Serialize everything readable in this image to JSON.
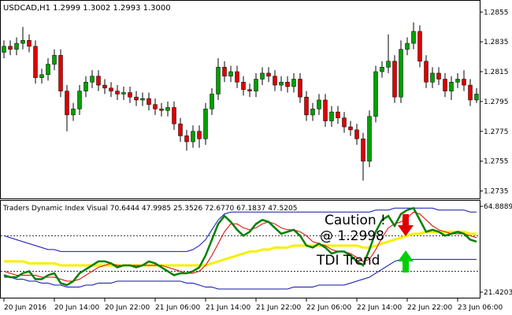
{
  "chart_data": [
    {
      "type": "candlestick",
      "title": "USDCAD,H1  1.2999 1.3002 1.2993 1.3000",
      "categories": [
        "20 Jun 2016",
        null,
        null,
        null,
        null,
        null,
        null,
        null,
        "20 Jun 14:00",
        null,
        null,
        null,
        null,
        null,
        null,
        null,
        "20 Jun 22:00",
        null,
        null,
        null,
        null,
        null,
        null,
        null,
        "21 Jun 06:00",
        null,
        null,
        null,
        null,
        null,
        null,
        null,
        "21 Jun 14:00",
        null,
        null,
        null,
        null,
        null,
        null,
        null,
        "21 Jun 22:00",
        null,
        null,
        null,
        null,
        null,
        null,
        null,
        "22 Jun 06:00",
        null,
        null,
        null,
        null,
        null,
        null,
        null,
        "22 Jun 14:00",
        null,
        null,
        null,
        null,
        null,
        null,
        null,
        "22 Jun 22:00",
        null,
        null,
        null,
        null,
        null,
        null,
        null,
        "23 Jun 06:00",
        null,
        null,
        null
      ],
      "open": [
        1.2828,
        1.2832,
        1.283,
        1.2834,
        1.2836,
        1.2832,
        1.2811,
        1.2813,
        1.282,
        1.2826,
        1.2802,
        1.2786,
        1.279,
        1.2802,
        1.2808,
        1.2812,
        1.2806,
        1.2804,
        1.2802,
        1.28,
        1.2801,
        1.2798,
        1.2796,
        1.2797,
        1.2793,
        1.279,
        1.2789,
        1.2791,
        1.278,
        1.2772,
        1.2768,
        1.2775,
        1.277,
        1.279,
        1.28,
        1.2818,
        1.2812,
        1.2815,
        1.2808,
        1.2803,
        1.2802,
        1.281,
        1.2814,
        1.2812,
        1.2806,
        1.2808,
        1.2805,
        1.281,
        1.2798,
        1.2786,
        1.279,
        1.2796,
        1.2782,
        1.2788,
        1.2784,
        1.2778,
        1.2776,
        1.277,
        1.2755,
        1.2785,
        1.2815,
        1.2818,
        1.2822,
        1.2798,
        1.283,
        1.2834,
        1.2842,
        1.2822,
        1.2808,
        1.2814,
        1.281,
        1.2802,
        1.2808,
        1.281,
        1.2806,
        1.2796
      ],
      "high": [
        1.2836,
        1.2836,
        1.2838,
        1.2845,
        1.284,
        1.2836,
        1.2817,
        1.2824,
        1.283,
        1.283,
        1.2806,
        1.2794,
        1.2806,
        1.2812,
        1.2816,
        1.2816,
        1.281,
        1.2808,
        1.2806,
        1.2805,
        1.2805,
        1.2802,
        1.2801,
        1.2801,
        1.2797,
        1.2794,
        1.2795,
        1.2795,
        1.2784,
        1.2776,
        1.2779,
        1.2779,
        1.2794,
        1.2804,
        1.2824,
        1.2822,
        1.2819,
        1.2819,
        1.2812,
        1.2807,
        1.2814,
        1.2818,
        1.2818,
        1.2816,
        1.2812,
        1.2812,
        1.2814,
        1.2814,
        1.2802,
        1.2794,
        1.28,
        1.28,
        1.2792,
        1.2792,
        1.2788,
        1.2782,
        1.278,
        1.2774,
        1.2789,
        1.2819,
        1.2822,
        1.284,
        1.2826,
        1.2836,
        1.2838,
        1.2848,
        1.2846,
        1.2826,
        1.2818,
        1.2818,
        1.2814,
        1.2812,
        1.2814,
        1.2816,
        1.281,
        1.2804
      ],
      "low": [
        1.2824,
        1.2826,
        1.2826,
        1.283,
        1.2828,
        1.2807,
        1.2807,
        1.2809,
        1.2816,
        1.2798,
        1.2775,
        1.2782,
        1.2786,
        1.2798,
        1.2804,
        1.2802,
        1.28,
        1.2798,
        1.2796,
        1.2796,
        1.2794,
        1.2792,
        1.2792,
        1.2789,
        1.2786,
        1.2785,
        1.2785,
        1.2776,
        1.2768,
        1.2762,
        1.2764,
        1.2764,
        1.2766,
        1.2786,
        1.2796,
        1.2808,
        1.2808,
        1.2804,
        1.2799,
        1.2798,
        1.2798,
        1.2806,
        1.2808,
        1.2802,
        1.2802,
        1.2801,
        1.2801,
        1.2794,
        1.2782,
        1.2782,
        1.2786,
        1.2778,
        1.2778,
        1.278,
        1.2774,
        1.2772,
        1.2766,
        1.2742,
        1.2751,
        1.2781,
        1.2811,
        1.2814,
        1.2794,
        1.2794,
        1.2826,
        1.283,
        1.2818,
        1.2804,
        1.2804,
        1.2806,
        1.2798,
        1.2796,
        1.2804,
        1.2802,
        1.2792,
        1.2794
      ],
      "close": [
        1.2832,
        1.283,
        1.2834,
        1.2836,
        1.2832,
        1.2811,
        1.2813,
        1.282,
        1.2826,
        1.2802,
        1.2786,
        1.279,
        1.2802,
        1.2808,
        1.2812,
        1.2806,
        1.2804,
        1.2802,
        1.28,
        1.2801,
        1.2798,
        1.2796,
        1.2797,
        1.2793,
        1.279,
        1.2789,
        1.2791,
        1.278,
        1.2772,
        1.2768,
        1.2775,
        1.277,
        1.279,
        1.28,
        1.2818,
        1.2812,
        1.2815,
        1.2808,
        1.2803,
        1.2802,
        1.281,
        1.2814,
        1.2812,
        1.2806,
        1.2808,
        1.2805,
        1.281,
        1.2798,
        1.2786,
        1.279,
        1.2796,
        1.2782,
        1.2788,
        1.2784,
        1.2778,
        1.2776,
        1.277,
        1.2755,
        1.2785,
        1.2815,
        1.2818,
        1.2822,
        1.2798,
        1.283,
        1.2834,
        1.2842,
        1.2822,
        1.2808,
        1.2814,
        1.281,
        1.2802,
        1.2808,
        1.281,
        1.2806,
        1.2796,
        1.28
      ],
      "up_color": "#00a000",
      "down_color": "#e00000",
      "ylim": [
        1.273,
        1.2862
      ],
      "yticks": [
        1.2855,
        1.2835,
        1.2815,
        1.2795,
        1.2775,
        1.2755,
        1.2735
      ]
    },
    {
      "type": "line",
      "title": "Traders Dynamic Index Visual 70.6444 47.9985 25.3526 72.6770 67.1837 47.5205",
      "ylim": [
        21.4203,
        64.8889
      ],
      "yticks": [
        64.8889,
        21.4203
      ],
      "levels": [
        50,
        32
      ],
      "series": [
        {
          "color": "#1010b0",
          "width": 1,
          "values": [
            50,
            49,
            48,
            47,
            46,
            45,
            44,
            43,
            43,
            42,
            42,
            42,
            42,
            42,
            42,
            42,
            42,
            42,
            42,
            42,
            42,
            42,
            42,
            42,
            42,
            42,
            42,
            42,
            42,
            42,
            43,
            45,
            48,
            53,
            58,
            61,
            62,
            62,
            62,
            62,
            62,
            62,
            62,
            62,
            62,
            62,
            62,
            62,
            62,
            62,
            62,
            62,
            62,
            62,
            62,
            62,
            62,
            62,
            62,
            63,
            63,
            63,
            64,
            64,
            64,
            64,
            64,
            64,
            64,
            63,
            63,
            63,
            63,
            63,
            62,
            62
          ]
        },
        {
          "color": "#1010b0",
          "width": 1,
          "values": [
            29,
            29,
            28,
            28,
            27,
            27,
            26,
            26,
            25,
            25,
            24,
            24,
            24,
            25,
            25,
            26,
            26,
            26,
            27,
            27,
            27,
            27,
            27,
            27,
            27,
            27,
            27,
            27,
            27,
            26,
            26,
            25,
            24,
            24,
            23,
            23,
            23,
            23,
            23,
            23,
            23,
            23,
            23,
            23,
            23,
            23,
            24,
            24,
            24,
            24,
            25,
            25,
            25,
            25,
            25,
            26,
            27,
            28,
            29,
            31,
            33,
            35,
            37,
            38,
            38,
            38,
            38,
            38,
            38,
            38,
            38,
            38,
            38,
            38,
            38,
            38
          ]
        },
        {
          "color": "#f5f000",
          "width": 3,
          "values": [
            37,
            37,
            37,
            37,
            36,
            36,
            36,
            36,
            36,
            35,
            35,
            35,
            35,
            35,
            35,
            35,
            35,
            35,
            35,
            35,
            35,
            35,
            35,
            35,
            35,
            35,
            35,
            35,
            35,
            35,
            35,
            35,
            35,
            36,
            37,
            38,
            39,
            40,
            41,
            42,
            42,
            43,
            43,
            44,
            44,
            44,
            45,
            45,
            45,
            45,
            45,
            45,
            45,
            45,
            45,
            45,
            45,
            44,
            44,
            45,
            46,
            47,
            48,
            49,
            50,
            51,
            51,
            52,
            52,
            52,
            52,
            52,
            52,
            52,
            51,
            51
          ]
        },
        {
          "color": "#e00000",
          "width": 1,
          "values": [
            32,
            31,
            30,
            30,
            30,
            30,
            29,
            29,
            29,
            28,
            27,
            27,
            28,
            30,
            32,
            34,
            35,
            36,
            35,
            35,
            35,
            35,
            35,
            35,
            35,
            35,
            34,
            33,
            32,
            31,
            31,
            32,
            35,
            40,
            46,
            52,
            56,
            56,
            54,
            53,
            54,
            56,
            57,
            56,
            54,
            53,
            53,
            52,
            50,
            47,
            46,
            45,
            43,
            42,
            42,
            41,
            39,
            37,
            38,
            43,
            49,
            54,
            56,
            57,
            59,
            62,
            61,
            58,
            55,
            53,
            52,
            51,
            51,
            51,
            50,
            49
          ]
        },
        {
          "color": "#008000",
          "width": 2.5,
          "values": [
            30,
            29,
            29,
            31,
            32,
            28,
            28,
            30,
            31,
            26,
            25,
            27,
            31,
            33,
            35,
            37,
            37,
            36,
            34,
            35,
            35,
            34,
            35,
            37,
            36,
            34,
            32,
            30,
            31,
            31,
            32,
            34,
            40,
            48,
            56,
            60,
            57,
            53,
            50,
            52,
            56,
            58,
            57,
            54,
            51,
            52,
            53,
            50,
            45,
            44,
            46,
            44,
            41,
            42,
            42,
            40,
            37,
            35,
            43,
            52,
            58,
            60,
            55,
            61,
            63,
            64,
            58,
            52,
            53,
            52,
            50,
            51,
            52,
            51,
            48,
            47
          ]
        }
      ],
      "annotations": [
        {
          "text": "Caution !",
          "color": "#e00000"
        },
        {
          "text": "@ 1.2998",
          "color": "#e00000"
        },
        {
          "text": "TDI Trend",
          "color": "#00d000"
        }
      ]
    }
  ]
}
